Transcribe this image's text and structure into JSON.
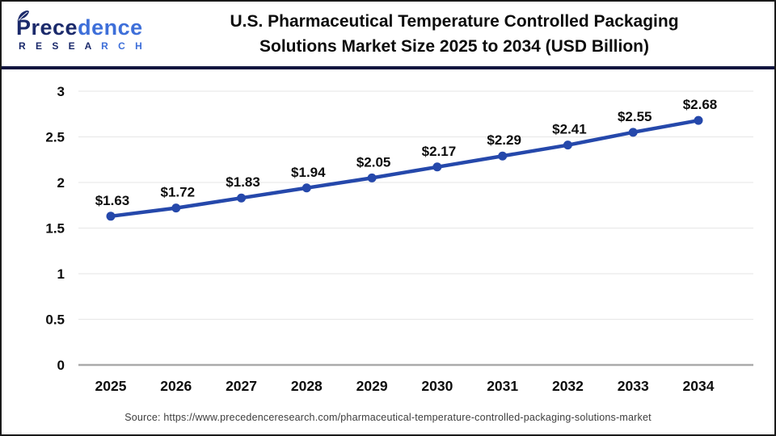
{
  "header": {
    "logo": {
      "name_part1": "Prece",
      "name_part2": "dence",
      "sub_part1": "R E S E A",
      "sub_part2": " R C H"
    },
    "title_line1": "U.S. Pharmaceutical Temperature Controlled Packaging",
    "title_line2": "Solutions Market Size 2025 to 2034 (USD Billion)"
  },
  "chart_data": {
    "type": "line",
    "title": "U.S. Pharmaceutical Temperature Controlled Packaging Solutions Market Size 2025 to 2034 (USD Billion)",
    "categories": [
      "2025",
      "2026",
      "2027",
      "2028",
      "2029",
      "2030",
      "2031",
      "2032",
      "2033",
      "2034"
    ],
    "values": [
      1.63,
      1.72,
      1.83,
      1.94,
      2.05,
      2.17,
      2.29,
      2.41,
      2.55,
      2.68
    ],
    "point_labels": [
      "$1.63",
      "$1.72",
      "$1.83",
      "$1.94",
      "$2.05",
      "$2.17",
      "$2.29",
      "$2.41",
      "$2.55",
      "$2.68"
    ],
    "unit": "USD Billion",
    "xlabel": "",
    "ylabel": "",
    "ylim": [
      0,
      3
    ],
    "yticks": [
      0,
      0.5,
      1,
      1.5,
      2,
      2.5,
      3
    ],
    "grid": true,
    "legend": "none",
    "line_color": "#2548ab",
    "marker_color": "#2548ab"
  },
  "footer": {
    "source": "Source: https://www.precedenceresearch.com/pharmaceutical-temperature-controlled-packaging-solutions-market"
  },
  "colors": {
    "grid": "#e9e9e9",
    "axis": "#aaaaaa",
    "label_text": "#0d0d0d"
  }
}
